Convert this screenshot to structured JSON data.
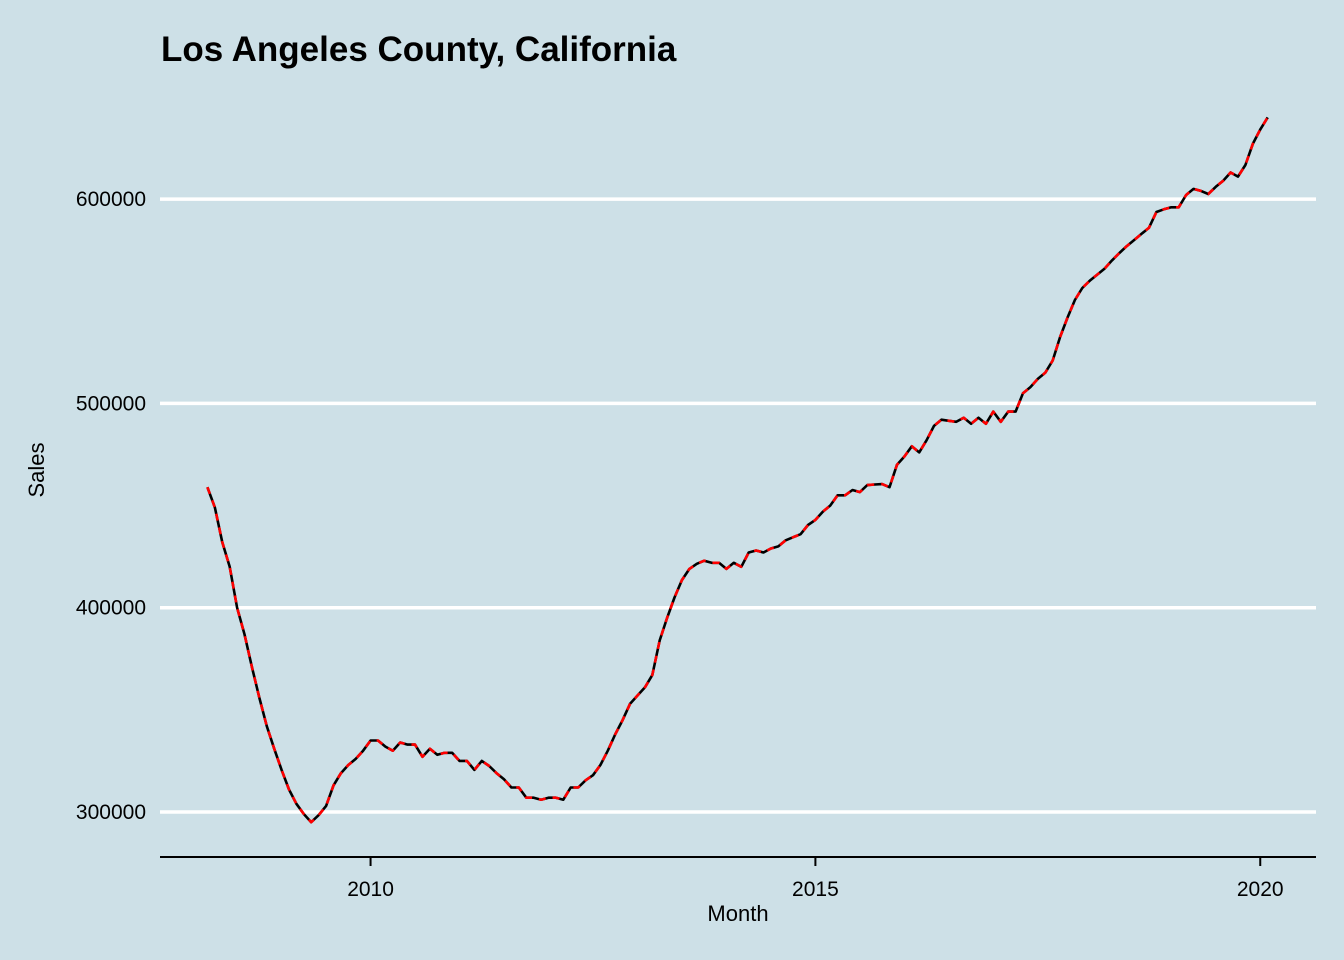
{
  "chart_data": {
    "type": "line",
    "title": "Los Angeles County, California",
    "xlabel": "Month",
    "ylabel": "Sales",
    "xlim": [
      "2007-08",
      "2020-09"
    ],
    "ylim": [
      278000,
      660000
    ],
    "x_ticks": [
      "2010",
      "2015",
      "2020"
    ],
    "y_ticks": [
      300000,
      400000,
      500000,
      600000
    ],
    "y_tick_labels": [
      "300000",
      "400000",
      "500000",
      "600000"
    ],
    "grid": "horizontal major, white",
    "legend": "none",
    "background": "#cde0e7",
    "x": [
      "2008-03",
      "2008-04",
      "2008-05",
      "2008-06",
      "2008-07",
      "2008-08",
      "2008-09",
      "2008-10",
      "2008-11",
      "2008-12",
      "2009-01",
      "2009-02",
      "2009-03",
      "2009-04",
      "2009-05",
      "2009-06",
      "2009-07",
      "2009-08",
      "2009-09",
      "2009-10",
      "2009-11",
      "2009-12",
      "2010-01",
      "2010-02",
      "2010-03",
      "2010-04",
      "2010-05",
      "2010-06",
      "2010-07",
      "2010-08",
      "2010-09",
      "2010-10",
      "2010-11",
      "2010-12",
      "2011-01",
      "2011-02",
      "2011-03",
      "2011-04",
      "2011-05",
      "2011-06",
      "2011-07",
      "2011-08",
      "2011-09",
      "2011-10",
      "2011-11",
      "2011-12",
      "2012-01",
      "2012-02",
      "2012-03",
      "2012-04",
      "2012-05",
      "2012-06",
      "2012-07",
      "2012-08",
      "2012-09",
      "2012-10",
      "2012-11",
      "2012-12",
      "2013-01",
      "2013-02",
      "2013-03",
      "2013-04",
      "2013-05",
      "2013-06",
      "2013-07",
      "2013-08",
      "2013-09",
      "2013-10",
      "2013-11",
      "2013-12",
      "2014-01",
      "2014-02",
      "2014-03",
      "2014-04",
      "2014-05",
      "2014-06",
      "2014-07",
      "2014-08",
      "2014-09",
      "2014-10",
      "2014-11",
      "2014-12",
      "2015-01",
      "2015-02",
      "2015-03",
      "2015-04",
      "2015-05",
      "2015-06",
      "2015-07",
      "2015-08",
      "2015-09",
      "2015-10",
      "2015-11",
      "2015-12",
      "2016-01",
      "2016-02",
      "2016-03",
      "2016-04",
      "2016-05",
      "2016-06",
      "2016-07",
      "2016-08",
      "2016-09",
      "2016-10",
      "2016-11",
      "2016-12",
      "2017-01",
      "2017-02",
      "2017-03",
      "2017-04",
      "2017-05",
      "2017-06",
      "2017-07",
      "2017-08",
      "2017-09",
      "2017-10",
      "2017-11",
      "2017-12",
      "2018-01",
      "2018-02",
      "2018-03",
      "2018-04",
      "2018-05",
      "2018-06",
      "2018-07",
      "2018-08",
      "2018-09",
      "2018-10",
      "2018-11",
      "2018-12",
      "2019-01",
      "2019-02",
      "2019-03",
      "2019-04",
      "2019-05",
      "2019-06",
      "2019-07",
      "2019-08",
      "2019-09",
      "2019-10",
      "2019-11",
      "2019-12",
      "2020-01",
      "2020-02"
    ],
    "series": [
      {
        "style": "solid",
        "color": "#000000",
        "values": [
          459000,
          449000,
          432000,
          420000,
          400000,
          387000,
          371000,
          356000,
          342000,
          331000,
          320600,
          311000,
          304000,
          299000,
          295000,
          298500,
          303000,
          313000,
          319000,
          323000,
          326000,
          330000,
          335000,
          335000,
          332000,
          330000,
          334000,
          333000,
          333000,
          327000,
          331000,
          328000,
          329000,
          329000,
          325000,
          325000,
          320600,
          325000,
          322500,
          319000,
          316000,
          312000,
          312000,
          307000,
          307000,
          306000,
          307000,
          307000,
          306000,
          312000,
          312000,
          315500,
          318000,
          323000,
          330000,
          338000,
          345000,
          353000,
          357000,
          361000,
          367000,
          384000,
          395000,
          405000,
          413500,
          419000,
          421500,
          423000,
          422000,
          422000,
          419000,
          422000,
          420000,
          427000,
          428000,
          427000,
          429000,
          430000,
          433000,
          434500,
          436000,
          440500,
          443000,
          447000,
          450000,
          455000,
          455000,
          457600,
          456600,
          460000,
          460300,
          460500,
          459000,
          470000,
          474000,
          479000,
          476000,
          482000,
          489000,
          492000,
          491500,
          491000,
          493000,
          490000,
          493000,
          490000,
          496000,
          491000,
          496000,
          496000,
          505000,
          508000,
          512000,
          515000,
          521000,
          532500,
          542000,
          550600,
          556500,
          560000,
          563000,
          566000,
          570000,
          573600,
          577000,
          580000,
          583000,
          586000,
          593700,
          595000,
          596000,
          596000,
          602000,
          605000,
          604000,
          602500,
          606000,
          609000,
          613000,
          611000,
          616700,
          627000,
          634000,
          640000
        ]
      },
      {
        "style": "dashed",
        "color": "#ff0000",
        "values": [
          459000,
          449000,
          432000,
          420000,
          400000,
          387000,
          371000,
          356000,
          342000,
          331000,
          320600,
          311000,
          304000,
          299000,
          295000,
          298500,
          303000,
          313000,
          319000,
          323000,
          326000,
          330000,
          335000,
          335000,
          332000,
          330000,
          334000,
          333000,
          333000,
          327000,
          331000,
          328000,
          329000,
          329000,
          325000,
          325000,
          320600,
          325000,
          322500,
          319000,
          316000,
          312000,
          312000,
          307000,
          307000,
          306000,
          307000,
          307000,
          306000,
          312000,
          312000,
          315500,
          318000,
          323000,
          330000,
          338000,
          345000,
          353000,
          357000,
          361000,
          367000,
          384000,
          395000,
          405000,
          413500,
          419000,
          421500,
          423000,
          422000,
          422000,
          419000,
          422000,
          420000,
          427000,
          428000,
          427000,
          429000,
          430000,
          433000,
          434500,
          436000,
          440500,
          443000,
          447000,
          450000,
          455000,
          455000,
          457600,
          456600,
          460000,
          460300,
          460500,
          459000,
          470000,
          474000,
          479000,
          476000,
          482000,
          489000,
          492000,
          491500,
          491000,
          493000,
          490000,
          493000,
          490000,
          496000,
          491000,
          496000,
          496000,
          505000,
          508000,
          512000,
          515000,
          521000,
          532500,
          542000,
          550600,
          556500,
          560000,
          563000,
          566000,
          570000,
          573600,
          577000,
          580000,
          583000,
          586000,
          593700,
          595000,
          596000,
          596000,
          602000,
          605000,
          604000,
          602500,
          606000,
          609000,
          613000,
          611000,
          616700,
          627000,
          634000,
          640000
        ]
      }
    ]
  }
}
